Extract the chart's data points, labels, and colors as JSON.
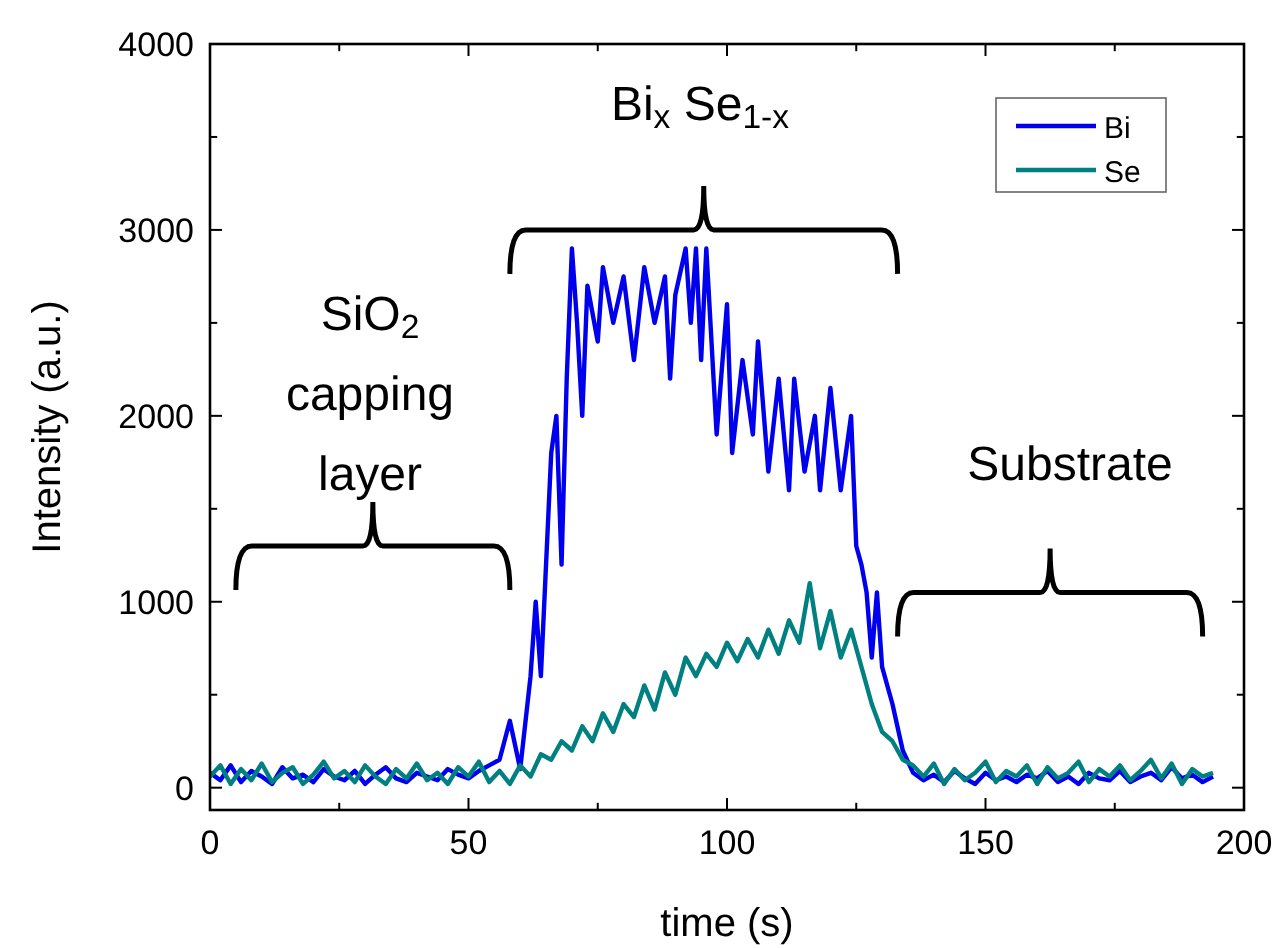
{
  "chart_data": {
    "type": "line",
    "xlabel": "time (s)",
    "ylabel": "Intensity (a.u.)",
    "xlim": [
      0,
      200
    ],
    "ylim": [
      -120,
      4000
    ],
    "xticks": [
      0,
      {
        "value": 25,
        "label": null
      },
      50,
      {
        "value": 75,
        "label": null
      },
      100,
      {
        "value": 125,
        "label": null
      },
      150,
      {
        "value": 175,
        "label": null
      },
      200
    ],
    "yticks": [
      0,
      {
        "value": 500,
        "label": null
      },
      1000,
      {
        "value": 1500,
        "label": null
      },
      2000,
      {
        "value": 2500,
        "label": null
      },
      3000,
      {
        "value": 3500,
        "label": null
      },
      4000
    ],
    "grid": false,
    "legend": "top right",
    "line_style": "solid",
    "annotations": [
      "SiO$_{2}$ capping layer",
      "Bi$_{x}$ Se$_{1-x}$",
      "Substrate"
    ],
    "series": [
      {
        "name": "Bi",
        "color": "#0000ee",
        "x": [
          0,
          2,
          4,
          6,
          8,
          10,
          12,
          14,
          16,
          18,
          20,
          22,
          24,
          26,
          28,
          30,
          32,
          34,
          36,
          38,
          40,
          42,
          44,
          46,
          48,
          50,
          52,
          54,
          56,
          58,
          60,
          62,
          63,
          64,
          66,
          67,
          68,
          69,
          70,
          71,
          72,
          73,
          75,
          76,
          78,
          80,
          82,
          84,
          86,
          88,
          89,
          90,
          92,
          93,
          94,
          95,
          96,
          98,
          100,
          101,
          103,
          105,
          106,
          108,
          110,
          112,
          113,
          115,
          117,
          118,
          120,
          122,
          124,
          125,
          126,
          127,
          128,
          129,
          130,
          132,
          134,
          136,
          138,
          140,
          142,
          144,
          146,
          148,
          150,
          152,
          154,
          156,
          158,
          160,
          162,
          164,
          166,
          168,
          170,
          172,
          174,
          176,
          178,
          180,
          182,
          184,
          186,
          188,
          190,
          192,
          194
        ],
        "values": [
          80,
          40,
          120,
          30,
          90,
          60,
          20,
          110,
          50,
          70,
          30,
          100,
          60,
          40,
          90,
          20,
          70,
          110,
          50,
          30,
          80,
          60,
          40,
          100,
          70,
          50,
          90,
          120,
          150,
          360,
          100,
          600,
          1000,
          600,
          1800,
          2000,
          1200,
          2200,
          2900,
          2500,
          2000,
          2700,
          2400,
          2800,
          2500,
          2750,
          2300,
          2800,
          2500,
          2750,
          2200,
          2650,
          2900,
          2500,
          2900,
          2300,
          2900,
          1900,
          2600,
          1800,
          2300,
          1900,
          2400,
          1700,
          2200,
          1600,
          2200,
          1700,
          2000,
          1600,
          2150,
          1600,
          2000,
          1300,
          1200,
          1050,
          700,
          1050,
          650,
          450,
          200,
          80,
          40,
          70,
          30,
          90,
          50,
          20,
          80,
          40,
          60,
          30,
          70,
          50,
          90,
          30,
          60,
          20,
          80,
          50,
          40,
          90,
          30,
          60,
          80,
          40,
          110,
          50,
          70,
          30,
          60
        ]
      },
      {
        "name": "Se",
        "color": "#008080",
        "x": [
          0,
          2,
          4,
          6,
          8,
          10,
          12,
          14,
          16,
          18,
          20,
          22,
          24,
          26,
          28,
          30,
          32,
          34,
          36,
          38,
          40,
          42,
          44,
          46,
          48,
          50,
          52,
          54,
          56,
          58,
          60,
          62,
          64,
          66,
          68,
          70,
          72,
          74,
          76,
          78,
          80,
          82,
          84,
          86,
          88,
          90,
          92,
          94,
          96,
          98,
          100,
          102,
          104,
          106,
          108,
          110,
          112,
          114,
          116,
          118,
          120,
          122,
          124,
          126,
          128,
          130,
          132,
          134,
          136,
          138,
          140,
          142,
          144,
          146,
          148,
          150,
          152,
          154,
          156,
          158,
          160,
          162,
          164,
          166,
          168,
          170,
          172,
          174,
          176,
          178,
          180,
          182,
          184,
          186,
          188,
          190,
          192,
          194
        ],
        "values": [
          60,
          120,
          20,
          100,
          40,
          130,
          30,
          80,
          110,
          20,
          70,
          140,
          50,
          90,
          30,
          120,
          60,
          20,
          100,
          50,
          130,
          40,
          80,
          20,
          110,
          60,
          140,
          30,
          90,
          20,
          120,
          60,
          180,
          150,
          250,
          200,
          330,
          250,
          400,
          300,
          450,
          380,
          550,
          420,
          620,
          500,
          700,
          600,
          720,
          650,
          780,
          680,
          800,
          700,
          850,
          720,
          900,
          780,
          1100,
          750,
          950,
          700,
          850,
          650,
          450,
          300,
          250,
          150,
          120,
          60,
          130,
          20,
          100,
          40,
          80,
          140,
          30,
          90,
          60,
          120,
          20,
          110,
          50,
          80,
          140,
          30,
          100,
          60,
          120,
          40,
          90,
          150,
          50,
          130,
          20,
          100,
          60,
          80
        ]
      }
    ]
  }
}
